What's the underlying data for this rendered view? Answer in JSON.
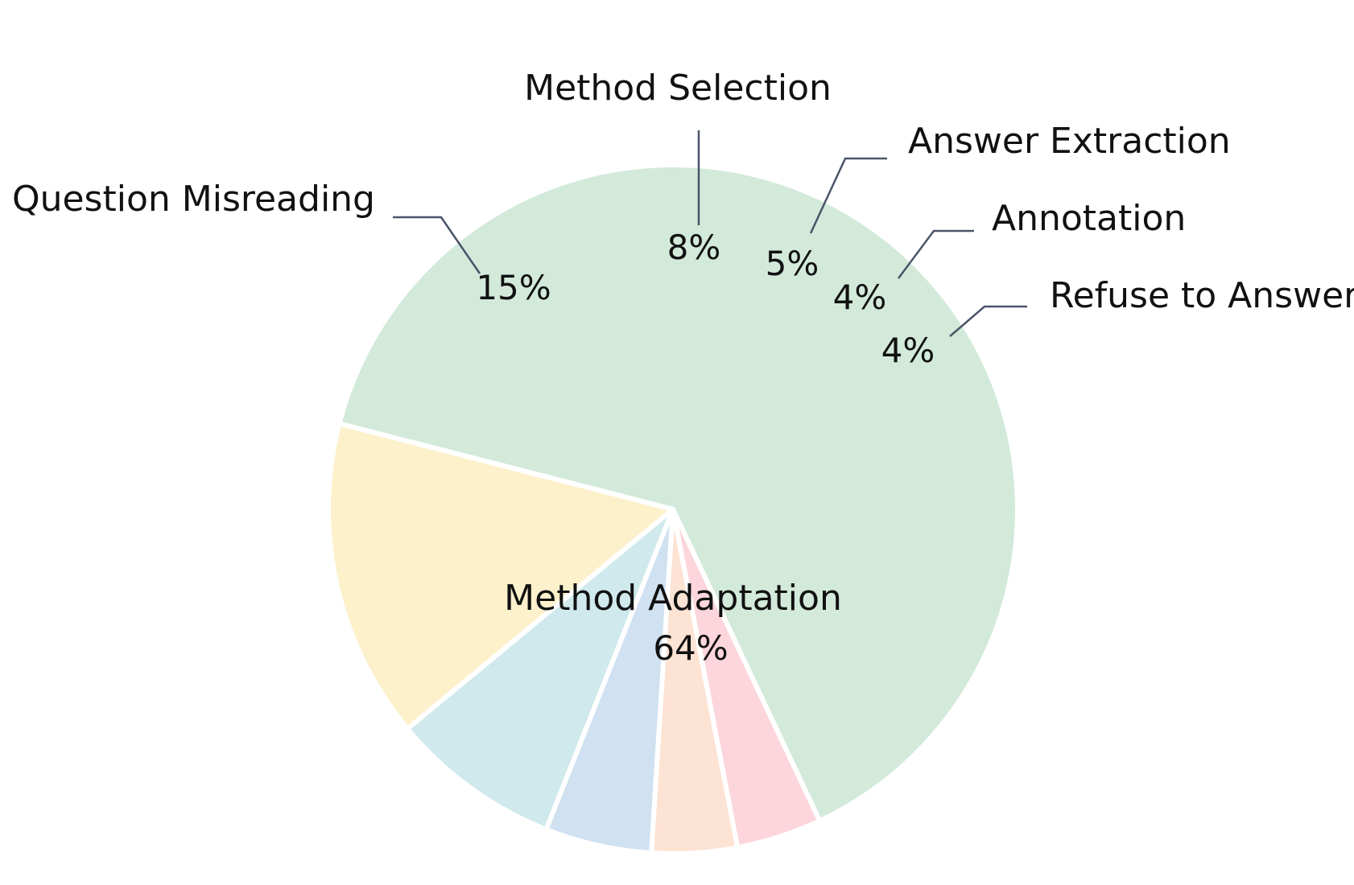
{
  "chart_data": {
    "type": "pie",
    "slices": [
      {
        "label": "Method Adaptation",
        "value": 64,
        "value_label": "64%",
        "color": "#d3eadb"
      },
      {
        "label": "Question Misreading",
        "value": 15,
        "value_label": "15%",
        "color": "#fdf1cc"
      },
      {
        "label": "Method Selection",
        "value": 8,
        "value_label": "8%",
        "color": "#cfe9ec"
      },
      {
        "label": "Answer Extraction",
        "value": 5,
        "value_label": "5%",
        "color": "#d0e1f1"
      },
      {
        "label": "Annotation",
        "value": 4,
        "value_label": "4%",
        "color": "#fde3d3"
      },
      {
        "label": "Refuse to Answer",
        "value": 4,
        "value_label": "4%",
        "color": "#fcd6dc"
      }
    ],
    "start_angle_deg": -64.8,
    "direction": "counterclockwise"
  }
}
